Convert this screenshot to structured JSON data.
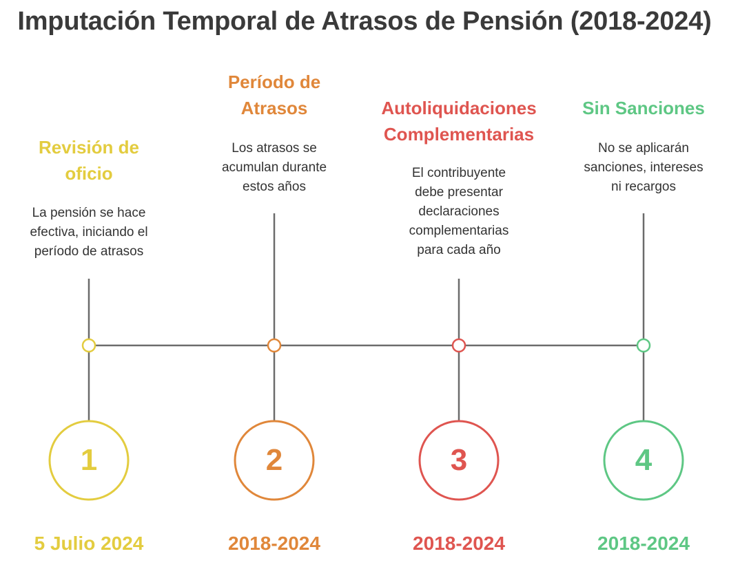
{
  "title": "Imputación Temporal de Atrasos de Pensión (2018-2024)",
  "colors": {
    "line": "#6b6b6b",
    "step1": "#e3cc3f",
    "step2": "#e0873a",
    "step3": "#df5550",
    "step4": "#5ec784"
  },
  "steps": [
    {
      "number": "1",
      "title_lines": [
        "Revisión de",
        "oficio"
      ],
      "desc_lines": [
        "La pensión se hace",
        "efectiva, iniciando el",
        "período de atrasos"
      ],
      "date": "5 Julio 2024"
    },
    {
      "number": "2",
      "title_lines": [
        "Período de",
        "Atrasos"
      ],
      "desc_lines": [
        "Los atrasos se",
        "acumulan durante",
        "estos años"
      ],
      "date": "2018-2024"
    },
    {
      "number": "3",
      "title_lines": [
        "Autoliquidaciones",
        "Complementarias"
      ],
      "desc_lines": [
        "El contribuyente",
        "debe presentar",
        "declaraciones",
        "complementarias",
        "para cada año"
      ],
      "date": "2018-2024"
    },
    {
      "number": "4",
      "title_lines": [
        "Sin Sanciones"
      ],
      "desc_lines": [
        "No se aplicarán",
        "sanciones, intereses",
        "ni recargos"
      ],
      "date": "2018-2024"
    }
  ]
}
